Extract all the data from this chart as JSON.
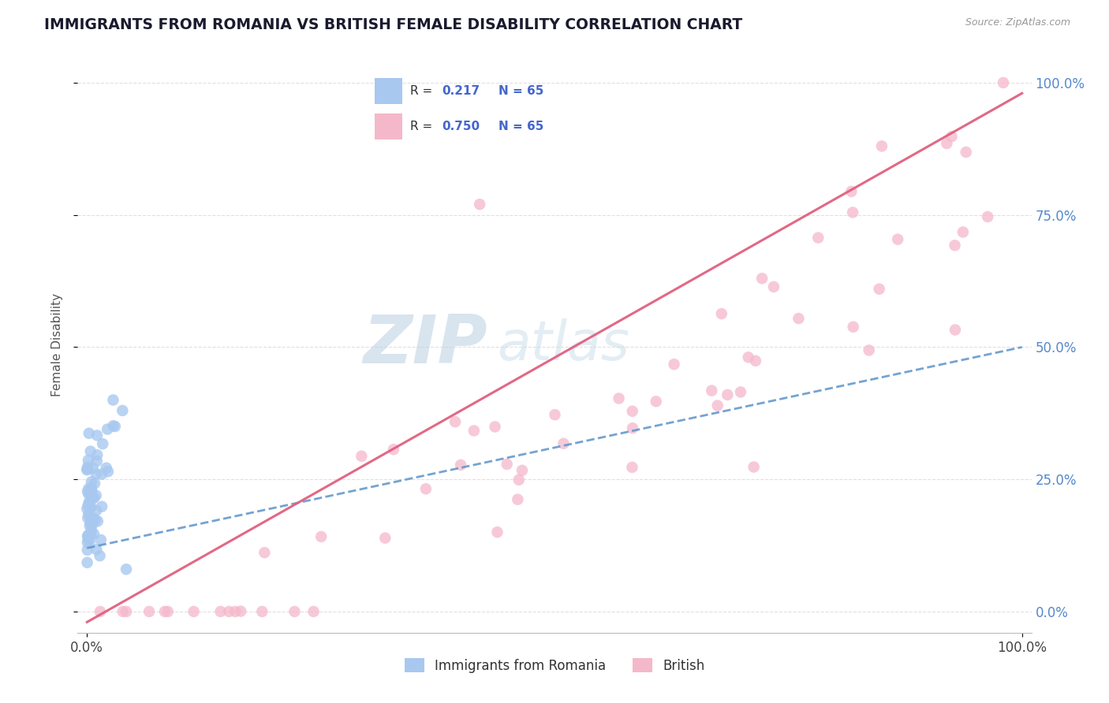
{
  "title": "IMMIGRANTS FROM ROMANIA VS BRITISH FEMALE DISABILITY CORRELATION CHART",
  "source": "Source: ZipAtlas.com",
  "ylabel": "Female Disability",
  "legend_label1": "Immigrants from Romania",
  "legend_label2": "British",
  "color_romania": "#a8c8f0",
  "color_british": "#f5b8cb",
  "color_romania_line": "#6699cc",
  "color_british_line": "#e06080",
  "background_color": "#ffffff",
  "grid_color": "#e0e0e0",
  "title_color": "#1a1a2e",
  "watermark_color": "#ccdded",
  "tick_color_right": "#5588cc",
  "romania_r": 0.217,
  "british_r": 0.75,
  "n": 65
}
